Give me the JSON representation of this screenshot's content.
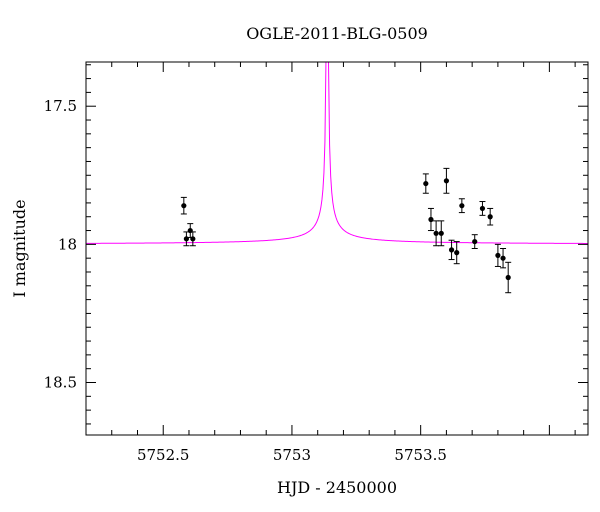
{
  "chart_data": {
    "type": "scatter",
    "title": "OGLE-2011-BLG-0509",
    "xlabel": "HJD - 2450000",
    "ylabel": "I magnitude",
    "xlim": [
      5752.2,
      5754.15
    ],
    "ylim": [
      18.69,
      17.34
    ],
    "y_inverted": true,
    "x_ticks": [
      "5752.5",
      "5753",
      "5753.5"
    ],
    "y_ticks": [
      "17.5",
      "18",
      "18.5"
    ],
    "model_color": "#ff00ff",
    "data_color": "#000000",
    "series": [
      {
        "type": "points_with_errorbars",
        "points": [
          {
            "x": 5752.58,
            "y": 17.86,
            "err": 0.03
          },
          {
            "x": 5752.59,
            "y": 17.98,
            "err": 0.025
          },
          {
            "x": 5752.605,
            "y": 17.95,
            "err": 0.025
          },
          {
            "x": 5752.615,
            "y": 17.98,
            "err": 0.025
          },
          {
            "x": 5753.52,
            "y": 17.78,
            "err": 0.035
          },
          {
            "x": 5753.54,
            "y": 17.91,
            "err": 0.04
          },
          {
            "x": 5753.56,
            "y": 17.96,
            "err": 0.045
          },
          {
            "x": 5753.58,
            "y": 17.96,
            "err": 0.045
          },
          {
            "x": 5753.6,
            "y": 17.77,
            "err": 0.045
          },
          {
            "x": 5753.62,
            "y": 18.02,
            "err": 0.035
          },
          {
            "x": 5753.64,
            "y": 18.03,
            "err": 0.04
          },
          {
            "x": 5753.66,
            "y": 17.86,
            "err": 0.025
          },
          {
            "x": 5753.71,
            "y": 17.99,
            "err": 0.025
          },
          {
            "x": 5753.74,
            "y": 17.87,
            "err": 0.025
          },
          {
            "x": 5753.77,
            "y": 17.9,
            "err": 0.03
          },
          {
            "x": 5753.8,
            "y": 18.04,
            "err": 0.04
          },
          {
            "x": 5753.82,
            "y": 18.05,
            "err": 0.035
          },
          {
            "x": 5753.84,
            "y": 18.12,
            "err": 0.055
          }
        ]
      },
      {
        "type": "model_curve",
        "t0": 5753.137,
        "baseline": 18.0,
        "amplitude": 0.024,
        "width": 0.138
      }
    ]
  }
}
